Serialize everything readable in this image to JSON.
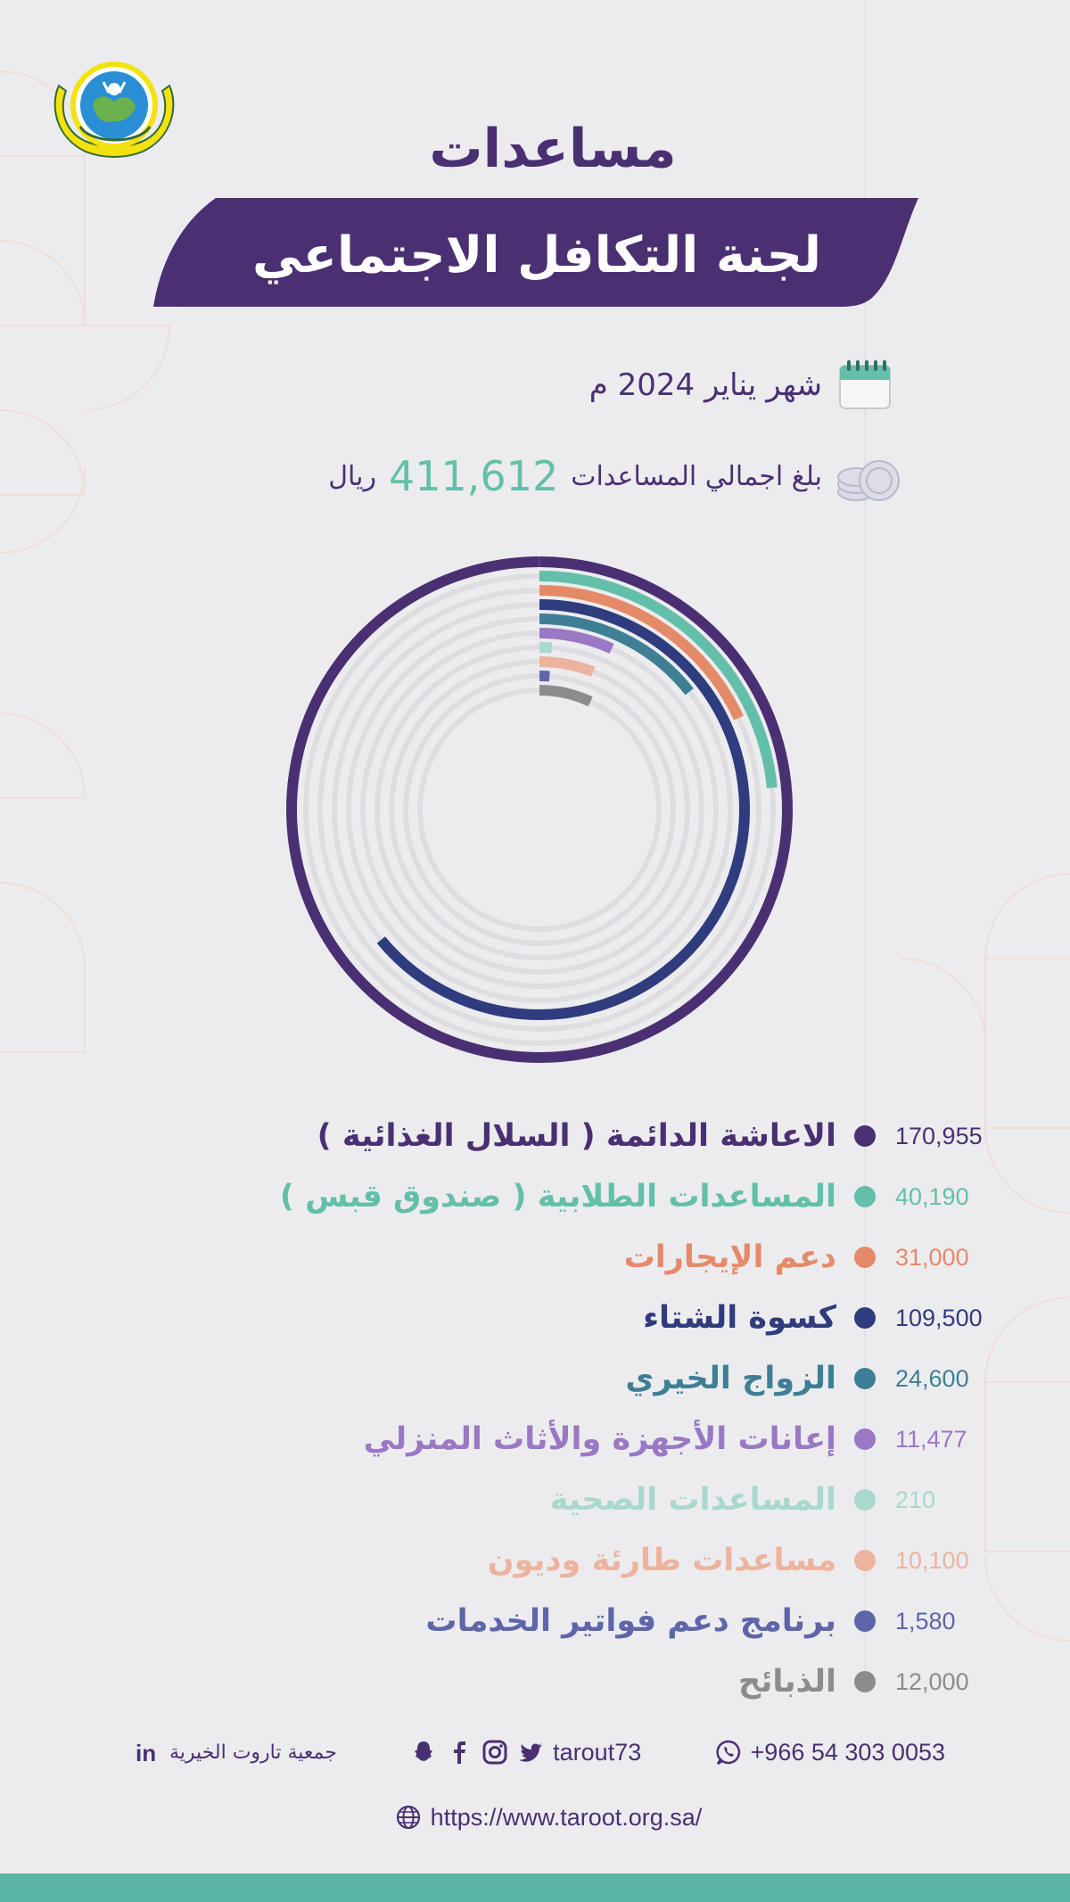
{
  "header": {
    "title": "مساعدات",
    "subtitle": "لجنة التكافل الاجتماعي"
  },
  "period": {
    "label": "شهر يناير 2024 م",
    "icon": "calendar-icon"
  },
  "total": {
    "prefix": "بلغ اجمالي المساعدات",
    "value": "411,612",
    "unit": "ريال",
    "icon": "coins-icon"
  },
  "chart_data": {
    "type": "radial-bar",
    "max_value": 170955,
    "categories": [
      "الاعاشة الدائمة ( السلال الغذائية )",
      "المساعدات الطلابية ( صندوق قبس )",
      "دعم الإيجارات",
      "كسوة الشتاء",
      "الزواج الخيري",
      "إعانات الأجهزة والأثاث المنزلي",
      "المساعدات الصحية",
      "مساعدات طارئة وديون",
      "برنامج دعم فواتير الخدمات",
      "الذبائح"
    ],
    "values": [
      170955,
      40190,
      31000,
      109500,
      24600,
      11477,
      210,
      10100,
      1580,
      12000
    ],
    "value_labels": [
      "170,955",
      "40,190",
      "31,000",
      "109,500",
      "24,600",
      "11,477",
      "210",
      "10,100",
      "1,580",
      "12,000"
    ],
    "colors": [
      "#4a3072",
      "#63bfa9",
      "#e58a68",
      "#2f3c7e",
      "#3e7f95",
      "#9a78c4",
      "#a9d8cf",
      "#ecb49e",
      "#5d66a8",
      "#8c8c8c"
    ],
    "track_color": "#dedee2"
  },
  "contact": {
    "phone": "+966 54 303 0053",
    "handle": "tarout73",
    "org_name": "جمعية تاروت الخيرية",
    "url": "https://www.taroot.org.sa/"
  },
  "colors": {
    "primary": "#4a3072",
    "accent": "#63bfa9",
    "background": "#ececef"
  }
}
